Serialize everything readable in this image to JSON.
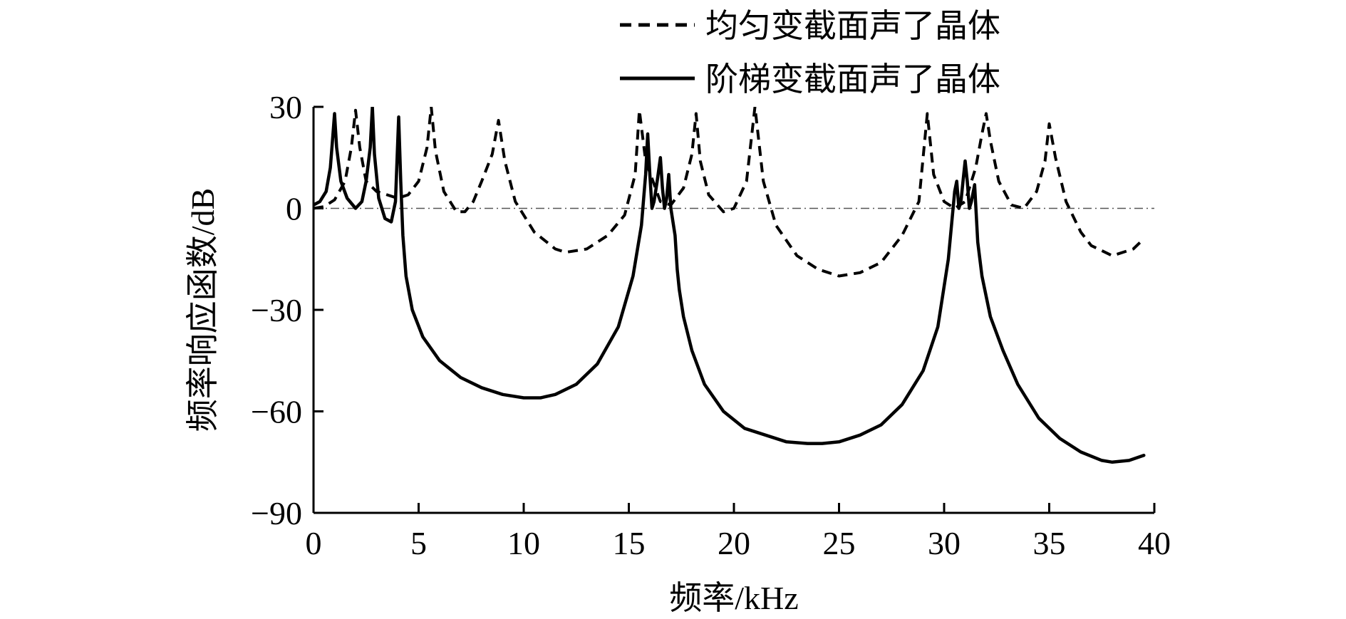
{
  "chart_data": {
    "type": "line",
    "title": "",
    "xlabel": "频率/kHz",
    "ylabel": "频率响应函数/dB",
    "xlim": [
      0,
      40
    ],
    "ylim": [
      -90,
      30
    ],
    "x_ticks": [
      "0",
      "5",
      "10",
      "15",
      "20",
      "25",
      "30",
      "35",
      "40"
    ],
    "y_ticks": [
      "30",
      "0",
      "−30",
      "−60",
      "−90"
    ],
    "x_tick_values": [
      0,
      5,
      10,
      15,
      20,
      25,
      30,
      35,
      40
    ],
    "y_tick_values": [
      30,
      0,
      -30,
      -60,
      -90
    ],
    "legend_position": "top-right",
    "reference_line": {
      "y": 0,
      "style": "dash-dot"
    },
    "series": [
      {
        "name": "均匀变截面声了晶体",
        "style": "dashed",
        "color": "#000000",
        "x": [
          0.0,
          0.5,
          1.0,
          1.5,
          1.8,
          2.0,
          2.2,
          2.5,
          3.0,
          3.5,
          4.0,
          4.5,
          5.0,
          5.4,
          5.6,
          5.8,
          6.2,
          6.8,
          7.2,
          7.6,
          8.0,
          8.5,
          8.8,
          9.1,
          9.6,
          10.5,
          11.5,
          12.0,
          13.0,
          14.0,
          14.8,
          15.3,
          15.5,
          15.8,
          16.5,
          17.0,
          17.6,
          18.0,
          18.2,
          18.4,
          18.8,
          19.5,
          20.0,
          20.6,
          21.0,
          21.4,
          22.0,
          23.0,
          24.0,
          25.0,
          26.0,
          27.0,
          28.0,
          28.8,
          29.2,
          29.5,
          30.0,
          30.5,
          31.0,
          31.5,
          31.8,
          32.0,
          32.2,
          32.6,
          33.2,
          33.8,
          34.4,
          34.8,
          35.0,
          35.3,
          35.8,
          36.5,
          37.0,
          38.0,
          39.0,
          39.5
        ],
        "y": [
          0.0,
          0.5,
          2.5,
          8.0,
          18.0,
          29.0,
          18.0,
          8.0,
          5.0,
          4.0,
          3.0,
          4.0,
          8.0,
          18.0,
          30.0,
          17.0,
          5.0,
          -1.0,
          -1.0,
          2.0,
          8.0,
          16.0,
          26.0,
          14.0,
          2.0,
          -7.0,
          -12.0,
          -13.0,
          -12.0,
          -8.0,
          -2.0,
          10.0,
          29.0,
          14.0,
          2.0,
          1.0,
          6.0,
          16.0,
          28.0,
          14.0,
          4.0,
          -1.0,
          0.0,
          8.0,
          30.0,
          8.0,
          -5.0,
          -14.0,
          -18.0,
          -20.0,
          -19.0,
          -16.0,
          -8.0,
          2.0,
          28.0,
          10.0,
          2.0,
          0.0,
          2.0,
          12.0,
          22.0,
          28.0,
          20.0,
          8.0,
          1.0,
          0.0,
          5.0,
          14.0,
          25.0,
          15.0,
          2.0,
          -7.0,
          -11.0,
          -14.0,
          -12.0,
          -9.0
        ]
      },
      {
        "name": "阶梯变截面声了晶体",
        "style": "solid",
        "color": "#000000",
        "x": [
          0.0,
          0.3,
          0.6,
          0.8,
          0.9,
          1.0,
          1.1,
          1.3,
          1.6,
          2.0,
          2.3,
          2.5,
          2.7,
          2.8,
          2.9,
          3.1,
          3.4,
          3.7,
          3.9,
          4.05,
          4.15,
          4.25,
          4.4,
          4.7,
          5.2,
          6.0,
          7.0,
          8.0,
          9.0,
          10.0,
          10.8,
          11.5,
          12.5,
          13.5,
          14.5,
          15.2,
          15.6,
          15.8,
          15.9,
          16.0,
          16.1,
          16.2,
          16.35,
          16.5,
          16.6,
          16.7,
          16.8,
          16.9,
          17.0,
          17.2,
          17.3,
          17.4,
          17.6,
          18.0,
          18.6,
          19.5,
          20.5,
          21.5,
          22.5,
          23.5,
          24.2,
          25.0,
          26.0,
          27.0,
          28.0,
          29.0,
          29.7,
          30.2,
          30.5,
          30.6,
          30.7,
          30.8,
          30.9,
          31.0,
          31.1,
          31.2,
          31.3,
          31.45,
          31.6,
          31.8,
          32.2,
          32.8,
          33.5,
          34.5,
          35.5,
          36.5,
          37.5,
          38.0,
          38.8,
          39.5
        ],
        "y": [
          1.0,
          2.0,
          5.0,
          12.0,
          20.0,
          28.0,
          18.0,
          8.0,
          3.0,
          0.0,
          2.0,
          8.0,
          18.0,
          30.0,
          16.0,
          3.0,
          -3.0,
          -4.0,
          2.0,
          27.0,
          8.0,
          -8.0,
          -20.0,
          -30.0,
          -38.0,
          -45.0,
          -50.0,
          -53.0,
          -55.0,
          -56.0,
          -56.0,
          -55.0,
          -52.0,
          -46.0,
          -35.0,
          -20.0,
          -5.0,
          10.0,
          22.0,
          10.0,
          0.0,
          2.0,
          8.0,
          15.0,
          6.0,
          0.0,
          3.0,
          10.0,
          0.0,
          -8.0,
          -18.0,
          -24.0,
          -32.0,
          -42.0,
          -52.0,
          -60.0,
          -65.0,
          -67.0,
          -69.0,
          -69.5,
          -69.5,
          -69.0,
          -67.0,
          -64.0,
          -58.0,
          -48.0,
          -35.0,
          -15.0,
          5.0,
          8.0,
          0.0,
          2.0,
          8.0,
          14.0,
          8.0,
          0.0,
          2.0,
          7.0,
          -10.0,
          -20.0,
          -32.0,
          -42.0,
          -52.0,
          -62.0,
          -68.0,
          -72.0,
          -74.5,
          -75.0,
          -74.5,
          -73.0
        ]
      }
    ]
  }
}
